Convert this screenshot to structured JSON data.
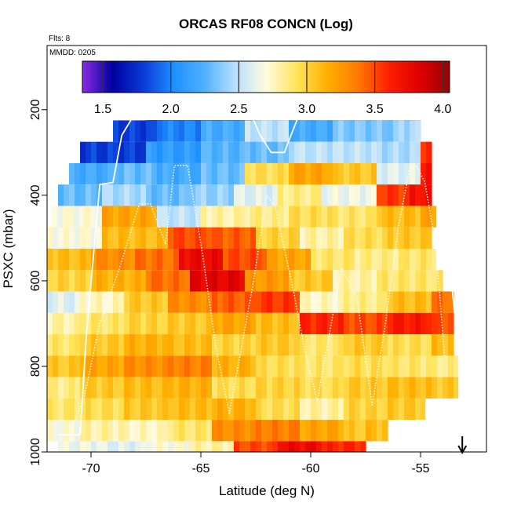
{
  "chart_data": {
    "type": "heatmap",
    "title": "ORCAS RF08 CONCN (Log)",
    "flights_label": "Flts: 8",
    "date_label": "MMDD: 0205",
    "xlabel": "Latitude (deg N)",
    "ylabel": "PSXC (mbar)",
    "xlim": [
      -72,
      -52
    ],
    "ylim": [
      1000,
      50
    ],
    "x_ticks": [
      -70,
      -65,
      -60,
      -55
    ],
    "x_tick_labels": [
      "-70",
      "-65",
      "-60",
      "-55"
    ],
    "y_ticks": [
      200,
      400,
      600,
      800,
      1000
    ],
    "y_tick_labels": [
      "200",
      "400",
      "600",
      "800",
      "1000"
    ],
    "colorbar": {
      "range": [
        1.35,
        4.05
      ],
      "ticks": [
        1.5,
        2.0,
        2.5,
        3.0,
        3.5,
        4.0
      ],
      "tick_labels": [
        "1.5",
        "2.0",
        "2.5",
        "3.0",
        "3.5",
        "4.0"
      ],
      "colors": [
        "#8a2be2",
        "#0000a0",
        "#0a3bd8",
        "#1e90ff",
        "#4fb2ff",
        "#b8e0ff",
        "#fffbe0",
        "#ffe45a",
        "#ffb000",
        "#ff7a00",
        "#ff2000",
        "#e00000",
        "#9a0000"
      ]
    },
    "pressure_bands": [
      {
        "p": 200,
        "segments": [
          [
            -67.5,
            -65.2,
            1.5
          ],
          [
            -65.2,
            -63.5,
            1.6
          ],
          [
            -63.5,
            -62.5,
            1.8
          ],
          [
            -62.5,
            -61.0,
            2.3
          ],
          [
            -61.0,
            -59.8,
            2.1
          ],
          [
            -59.8,
            -57.0,
            2.2
          ],
          [
            -57.0,
            -55.0,
            2.3
          ]
        ]
      },
      {
        "p": 250,
        "segments": [
          [
            -69.0,
            -67.0,
            1.8
          ],
          [
            -67.0,
            -65.0,
            2.0
          ],
          [
            -65.0,
            -63.0,
            2.2
          ],
          [
            -63.0,
            -61.0,
            2.5
          ],
          [
            -61.0,
            -59.0,
            2.2
          ],
          [
            -59.0,
            -56.0,
            2.35
          ],
          [
            -56.0,
            -55.0,
            2.45
          ]
        ]
      },
      {
        "p": 300,
        "segments": [
          [
            -70.5,
            -67.5,
            1.8
          ],
          [
            -67.5,
            -65.0,
            2.1
          ],
          [
            -65.0,
            -63.0,
            2.25
          ],
          [
            -63.0,
            -61.0,
            2.3
          ],
          [
            -61.0,
            -59.0,
            2.5
          ],
          [
            -59.0,
            -57.0,
            2.5
          ],
          [
            -57.0,
            -55.0,
            2.45
          ],
          [
            -55.0,
            -54.5,
            3.6
          ]
        ]
      },
      {
        "p": 350,
        "segments": [
          [
            -71.0,
            -69.0,
            2.2
          ],
          [
            -69.0,
            -67.0,
            2.3
          ],
          [
            -67.0,
            -65.0,
            2.2
          ],
          [
            -65.0,
            -63.0,
            2.3
          ],
          [
            -63.0,
            -61.0,
            2.95
          ],
          [
            -61.0,
            -59.0,
            3.2
          ],
          [
            -59.0,
            -57.0,
            3.05
          ],
          [
            -57.0,
            -55.0,
            2.6
          ],
          [
            -55.0,
            -54.5,
            3.7
          ]
        ]
      },
      {
        "p": 400,
        "segments": [
          [
            -71.5,
            -69.5,
            2.3
          ],
          [
            -69.5,
            -67.5,
            2.45
          ],
          [
            -67.5,
            -65.5,
            2.3
          ],
          [
            -65.5,
            -63.5,
            2.4
          ],
          [
            -63.5,
            -61.5,
            2.6
          ],
          [
            -61.5,
            -59.5,
            2.85
          ],
          [
            -59.5,
            -57.0,
            2.65
          ],
          [
            -57.0,
            -55.5,
            3.55
          ],
          [
            -55.5,
            -54.5,
            3.7
          ]
        ]
      },
      {
        "p": 450,
        "segments": [
          [
            -71.8,
            -69.5,
            2.7
          ],
          [
            -69.5,
            -67.0,
            3.2
          ],
          [
            -67.0,
            -65.0,
            2.5
          ],
          [
            -65.0,
            -63.0,
            2.8
          ],
          [
            -63.0,
            -61.0,
            2.85
          ],
          [
            -61.0,
            -59.0,
            2.95
          ],
          [
            -59.0,
            -57.0,
            2.9
          ],
          [
            -57.0,
            -55.0,
            3.1
          ],
          [
            -55.0,
            -54.3,
            3.2
          ]
        ]
      },
      {
        "p": 500,
        "segments": [
          [
            -72.0,
            -69.5,
            2.7
          ],
          [
            -69.5,
            -66.5,
            3.1
          ],
          [
            -66.5,
            -64.5,
            3.5
          ],
          [
            -64.5,
            -62.5,
            3.45
          ],
          [
            -62.5,
            -60.5,
            3.0
          ],
          [
            -60.5,
            -58.5,
            2.8
          ],
          [
            -58.5,
            -56.5,
            2.95
          ],
          [
            -56.5,
            -54.5,
            3.05
          ]
        ]
      },
      {
        "p": 550,
        "segments": [
          [
            -72.0,
            -70.0,
            3.1
          ],
          [
            -70.0,
            -68.0,
            3.3
          ],
          [
            -68.0,
            -66.0,
            3.4
          ],
          [
            -66.0,
            -64.0,
            3.75
          ],
          [
            -64.0,
            -62.0,
            3.5
          ],
          [
            -62.0,
            -60.0,
            3.2
          ],
          [
            -60.0,
            -58.0,
            2.9
          ],
          [
            -58.0,
            -56.0,
            2.85
          ],
          [
            -56.0,
            -54.3,
            2.9
          ]
        ]
      },
      {
        "p": 600,
        "segments": [
          [
            -72.0,
            -70.0,
            3.0
          ],
          [
            -70.0,
            -67.5,
            3.15
          ],
          [
            -67.5,
            -65.5,
            3.4
          ],
          [
            -65.5,
            -63.0,
            3.8
          ],
          [
            -63.0,
            -61.0,
            3.25
          ],
          [
            -61.0,
            -59.0,
            3.05
          ],
          [
            -59.0,
            -57.0,
            2.8
          ],
          [
            -57.0,
            -54.0,
            2.9
          ]
        ]
      },
      {
        "p": 650,
        "segments": [
          [
            -72.5,
            -70.5,
            2.6
          ],
          [
            -70.5,
            -68.5,
            2.75
          ],
          [
            -68.5,
            -66.5,
            3.05
          ],
          [
            -66.5,
            -64.5,
            3.3
          ],
          [
            -64.5,
            -62.5,
            3.45
          ],
          [
            -62.5,
            -60.5,
            3.55
          ],
          [
            -60.5,
            -58.5,
            2.75
          ],
          [
            -58.5,
            -56.5,
            2.85
          ],
          [
            -56.5,
            -54.5,
            3.1
          ],
          [
            -54.5,
            -53.5,
            3.4
          ]
        ]
      },
      {
        "p": 700,
        "segments": [
          [
            -72.5,
            -70.5,
            2.8
          ],
          [
            -70.5,
            -68.5,
            2.9
          ],
          [
            -68.5,
            -66.5,
            3.0
          ],
          [
            -66.5,
            -64.5,
            3.05
          ],
          [
            -64.5,
            -62.5,
            3.2
          ],
          [
            -62.5,
            -60.5,
            3.1
          ],
          [
            -60.5,
            -58.5,
            3.6
          ],
          [
            -58.5,
            -56.5,
            3.5
          ],
          [
            -56.5,
            -54.5,
            3.65
          ],
          [
            -54.5,
            -53.5,
            3.5
          ]
        ]
      },
      {
        "p": 750,
        "segments": [
          [
            -72.5,
            -70.5,
            2.9
          ],
          [
            -70.5,
            -68.5,
            3.05
          ],
          [
            -68.5,
            -66.5,
            3.15
          ],
          [
            -66.5,
            -64.5,
            3.1
          ],
          [
            -64.5,
            -62.5,
            3.0
          ],
          [
            -62.5,
            -60.5,
            3.05
          ],
          [
            -60.5,
            -58.5,
            2.9
          ],
          [
            -58.5,
            -56.5,
            3.05
          ],
          [
            -56.5,
            -54.5,
            2.95
          ],
          [
            -54.5,
            -53.5,
            3.1
          ]
        ]
      },
      {
        "p": 800,
        "segments": [
          [
            -72.5,
            -70.5,
            3.05
          ],
          [
            -70.5,
            -68.5,
            3.2
          ],
          [
            -68.5,
            -66.5,
            3.3
          ],
          [
            -66.5,
            -64.5,
            3.35
          ],
          [
            -64.5,
            -62.5,
            3.15
          ],
          [
            -62.5,
            -60.5,
            2.95
          ],
          [
            -60.5,
            -58.5,
            2.9
          ],
          [
            -58.5,
            -56.5,
            2.95
          ],
          [
            -56.5,
            -54.5,
            2.9
          ],
          [
            -54.5,
            -53.3,
            2.85
          ]
        ]
      },
      {
        "p": 850,
        "segments": [
          [
            -72.5,
            -70.5,
            2.85
          ],
          [
            -70.5,
            -68.5,
            3.05
          ],
          [
            -68.5,
            -66.5,
            3.1
          ],
          [
            -66.5,
            -64.5,
            3.15
          ],
          [
            -64.5,
            -62.5,
            2.95
          ],
          [
            -62.5,
            -60.5,
            3.0
          ],
          [
            -60.5,
            -58.5,
            2.95
          ],
          [
            -58.5,
            -56.5,
            3.05
          ],
          [
            -56.5,
            -54.5,
            3.1
          ],
          [
            -54.5,
            -53.3,
            3.05
          ]
        ]
      },
      {
        "p": 900,
        "segments": [
          [
            -72.5,
            -70.5,
            2.9
          ],
          [
            -70.5,
            -68.5,
            2.95
          ],
          [
            -68.5,
            -66.5,
            3.05
          ],
          [
            -66.5,
            -64.5,
            3.1
          ],
          [
            -64.5,
            -62.5,
            3.15
          ],
          [
            -62.5,
            -60.5,
            2.95
          ],
          [
            -60.5,
            -58.5,
            2.8
          ],
          [
            -58.5,
            -56.5,
            3.0
          ],
          [
            -56.5,
            -54.8,
            3.05
          ]
        ]
      },
      {
        "p": 950,
        "segments": [
          [
            -72.5,
            -70.5,
            2.7
          ],
          [
            -70.5,
            -68.5,
            2.8
          ],
          [
            -68.5,
            -66.5,
            2.75
          ],
          [
            -66.5,
            -64.5,
            2.9
          ],
          [
            -64.5,
            -62.5,
            3.3
          ],
          [
            -62.5,
            -60.5,
            3.35
          ],
          [
            -60.5,
            -58.5,
            3.2
          ],
          [
            -58.5,
            -57.5,
            3.05
          ],
          [
            -57.5,
            -56.5,
            3.1
          ]
        ]
      },
      {
        "p": 1000,
        "segments": [
          [
            -71.5,
            -69.5,
            2.65
          ],
          [
            -69.5,
            -67.5,
            2.6
          ],
          [
            -67.5,
            -65.5,
            2.7
          ],
          [
            -65.5,
            -63.5,
            2.8
          ],
          [
            -63.5,
            -61.5,
            3.5
          ],
          [
            -61.5,
            -59.5,
            3.75
          ],
          [
            -59.5,
            -57.5,
            3.6
          ]
        ]
      }
    ],
    "flight_tracks": [
      {
        "style": "solid",
        "points": [
          [
            -71.5,
            960
          ],
          [
            -70.5,
            960
          ],
          [
            -70.2,
            720
          ],
          [
            -69.6,
            375
          ],
          [
            -69.0,
            370
          ],
          [
            -68.6,
            260
          ],
          [
            -67.9,
            200
          ],
          [
            -67.5,
            185
          ],
          [
            -63.2,
            185
          ],
          [
            -62.8,
            200
          ],
          [
            -62.3,
            260
          ],
          [
            -61.8,
            300
          ],
          [
            -61.2,
            300
          ],
          [
            -60.9,
            260
          ],
          [
            -60.4,
            195
          ],
          [
            -60.0,
            185
          ],
          [
            -55.5,
            185
          ],
          [
            -55.0,
            200
          ],
          [
            -54.5,
            260
          ],
          [
            -54.2,
            350
          ],
          [
            -53.9,
            450
          ],
          [
            -53.4,
            700
          ]
        ]
      },
      {
        "style": "dotted",
        "points": [
          [
            -71.0,
            960
          ],
          [
            -70.3,
            870
          ],
          [
            -69.6,
            700
          ],
          [
            -68.7,
            570
          ],
          [
            -67.8,
            420
          ],
          [
            -67.3,
            420
          ],
          [
            -66.6,
            515
          ],
          [
            -66.2,
            330
          ],
          [
            -65.6,
            330
          ],
          [
            -64.9,
            545
          ],
          [
            -64.3,
            760
          ],
          [
            -63.7,
            910
          ],
          [
            -63.2,
            770
          ],
          [
            -62.6,
            600
          ],
          [
            -62.0,
            400
          ],
          [
            -61.6,
            430
          ],
          [
            -60.8,
            620
          ],
          [
            -60.2,
            780
          ],
          [
            -59.7,
            880
          ],
          [
            -59.1,
            710
          ],
          [
            -58.6,
            570
          ],
          [
            -57.9,
            640
          ],
          [
            -57.2,
            890
          ],
          [
            -56.6,
            700
          ],
          [
            -56.0,
            470
          ],
          [
            -55.5,
            340
          ],
          [
            -55.2,
            330
          ],
          [
            -54.8,
            370
          ],
          [
            -54.3,
            520
          ],
          [
            -53.9,
            780
          ]
        ]
      }
    ],
    "marker": {
      "symbol": "down-arrow",
      "x": -53.1,
      "p": 1000
    }
  }
}
